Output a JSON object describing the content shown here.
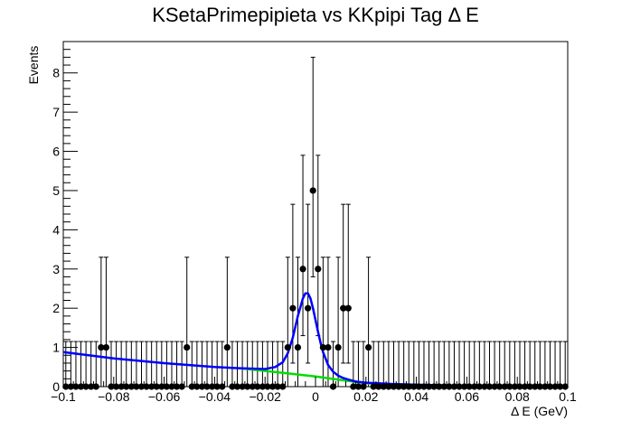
{
  "chart_data": {
    "type": "scatter",
    "title": "KSetaPrimepipieta vs KKpipi Tag Δ E",
    "xlabel": "Δ E (GeV)",
    "ylabel": "Events",
    "xlim": [
      -0.1,
      0.1
    ],
    "ylim": [
      0,
      8.8
    ],
    "x_ticks": [
      -0.1,
      -0.08,
      -0.06,
      -0.04,
      -0.02,
      0,
      0.02,
      0.04,
      0.06,
      0.08,
      0.1
    ],
    "x_tick_labels": [
      "−0.1",
      "−0.08",
      "−0.06",
      "−0.04",
      "−0.02",
      "0",
      "0.02",
      "0.04",
      "0.06",
      "0.08",
      "0.1"
    ],
    "y_ticks": [
      0,
      1,
      2,
      3,
      4,
      5,
      6,
      7,
      8
    ],
    "y_tick_labels": [
      "0",
      "1",
      "2",
      "3",
      "4",
      "5",
      "6",
      "7",
      "8"
    ],
    "bins": {
      "count": 100,
      "low": -0.1,
      "high": 0.1
    },
    "series": [
      {
        "kind": "histogram-points",
        "color": "#000000",
        "nonzero_bins": [
          {
            "x": -0.085,
            "y": 1
          },
          {
            "x": -0.083,
            "y": 1
          },
          {
            "x": -0.051,
            "y": 1
          },
          {
            "x": -0.035,
            "y": 1
          },
          {
            "x": -0.011,
            "y": 1
          },
          {
            "x": -0.009,
            "y": 2
          },
          {
            "x": -0.007,
            "y": 1
          },
          {
            "x": -0.005,
            "y": 3
          },
          {
            "x": -0.003,
            "y": 2
          },
          {
            "x": -0.001,
            "y": 5
          },
          {
            "x": 0.001,
            "y": 3
          },
          {
            "x": 0.003,
            "y": 1
          },
          {
            "x": 0.005,
            "y": 1
          },
          {
            "x": 0.009,
            "y": 1
          },
          {
            "x": 0.011,
            "y": 2
          },
          {
            "x": 0.013,
            "y": 2
          },
          {
            "x": 0.021,
            "y": 1
          }
        ],
        "error_bars": {
          "0": [
            0,
            1.15
          ],
          "1": [
            0,
            3.3
          ],
          "2": [
            0.6,
            4.65
          ],
          "3": [
            1.3,
            5.9
          ],
          "5": [
            2.8,
            8.4
          ]
        }
      },
      {
        "kind": "fit-total",
        "color": "#0000ff",
        "x": [
          -0.1,
          -0.09,
          -0.08,
          -0.07,
          -0.06,
          -0.05,
          -0.04,
          -0.03,
          -0.02,
          -0.016,
          -0.013,
          -0.011,
          -0.009,
          -0.007,
          -0.005,
          -0.004,
          -0.003,
          -0.002,
          -0.001,
          0,
          0.001,
          0.002,
          0.003,
          0.005,
          0.007,
          0.009,
          0.011,
          0.013,
          0.016,
          0.02,
          0.03,
          0.04,
          0.06,
          0.08,
          0.1
        ],
        "y": [
          0.88,
          0.8,
          0.72,
          0.66,
          0.6,
          0.55,
          0.5,
          0.47,
          0.45,
          0.5,
          0.62,
          0.85,
          1.25,
          1.8,
          2.25,
          2.38,
          2.38,
          2.25,
          2.0,
          1.7,
          1.4,
          1.12,
          0.88,
          0.55,
          0.38,
          0.28,
          0.22,
          0.18,
          0.13,
          0.1,
          0.07,
          0.05,
          0.02,
          0.01,
          0.01
        ]
      },
      {
        "kind": "fit-background",
        "color": "#00dd00",
        "x": [
          -0.03,
          -0.02,
          -0.01,
          0,
          0.01,
          0.02,
          0.03,
          0.04,
          0.06,
          0.08,
          0.1
        ],
        "y": [
          0.47,
          0.4,
          0.33,
          0.26,
          0.17,
          0.09,
          0.05,
          0.03,
          0.015,
          0.01,
          0.01
        ]
      }
    ],
    "grid": false,
    "legend": "none"
  }
}
